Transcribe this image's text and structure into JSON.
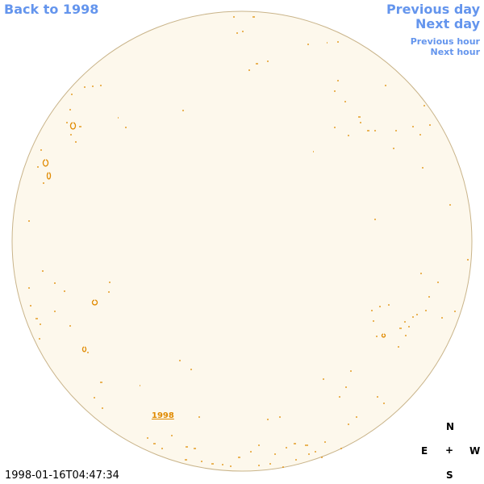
{
  "nav": {
    "back": "Back to 1998",
    "previous_day": "Previous day",
    "next_day": "Next day",
    "previous_hour": "Previous hour",
    "next_hour": "Next hour"
  },
  "timestamp": "1998-01-16T04:47:34",
  "disc_label": "1998",
  "compass": {
    "north": "N",
    "east": "E",
    "center": "+",
    "west": "W",
    "south": "S"
  }
}
